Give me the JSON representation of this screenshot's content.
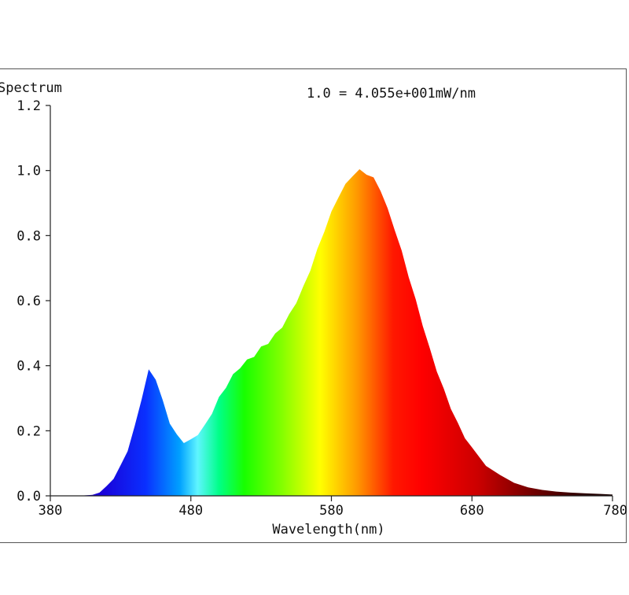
{
  "chart_data": {
    "type": "area",
    "title": "Spectrum",
    "scale_note": "1.0 = 4.055e+001mW/nm",
    "xlabel": "Wavelength(nm)",
    "ylabel": "",
    "xlim": [
      380,
      780
    ],
    "ylim": [
      0,
      1.2
    ],
    "x_ticks": [
      380,
      480,
      580,
      680,
      780
    ],
    "y_ticks": [
      0.0,
      0.2,
      0.4,
      0.6,
      0.8,
      1.0,
      1.2
    ],
    "x_tick_labels": [
      "380",
      "480",
      "580",
      "680",
      "780"
    ],
    "y_tick_labels": [
      "0.0",
      "0.2",
      "0.4",
      "0.6",
      "0.8",
      "1.0",
      "1.2"
    ],
    "grid": false,
    "fill": "visible-spectrum gradient",
    "series": [
      {
        "x": [
          380,
          400,
          410,
          415,
          420,
          425,
          430,
          435,
          440,
          445,
          450,
          455,
          460,
          465,
          470,
          475,
          480,
          485,
          490,
          495,
          500,
          505,
          510,
          515,
          520,
          525,
          530,
          535,
          540,
          545,
          550,
          555,
          560,
          565,
          570,
          575,
          580,
          585,
          590,
          595,
          600,
          605,
          610,
          615,
          620,
          625,
          630,
          635,
          640,
          645,
          650,
          655,
          660,
          665,
          670,
          675,
          680,
          690,
          700,
          710,
          720,
          730,
          740,
          750,
          760,
          770,
          780
        ],
        "values": [
          0.0,
          0.0,
          0.003,
          0.01,
          0.03,
          0.055,
          0.09,
          0.14,
          0.21,
          0.3,
          0.385,
          0.36,
          0.29,
          0.225,
          0.185,
          0.165,
          0.17,
          0.19,
          0.215,
          0.255,
          0.3,
          0.335,
          0.37,
          0.395,
          0.415,
          0.43,
          0.455,
          0.47,
          0.495,
          0.52,
          0.555,
          0.595,
          0.64,
          0.695,
          0.755,
          0.815,
          0.87,
          0.92,
          0.955,
          0.985,
          1.0,
          0.99,
          0.975,
          0.94,
          0.88,
          0.82,
          0.75,
          0.675,
          0.6,
          0.525,
          0.45,
          0.385,
          0.325,
          0.27,
          0.22,
          0.18,
          0.145,
          0.095,
          0.06,
          0.04,
          0.026,
          0.018,
          0.013,
          0.01,
          0.008,
          0.006,
          0.004
        ]
      }
    ]
  },
  "colors": {
    "axis": "#222222",
    "frame": "#555555"
  }
}
